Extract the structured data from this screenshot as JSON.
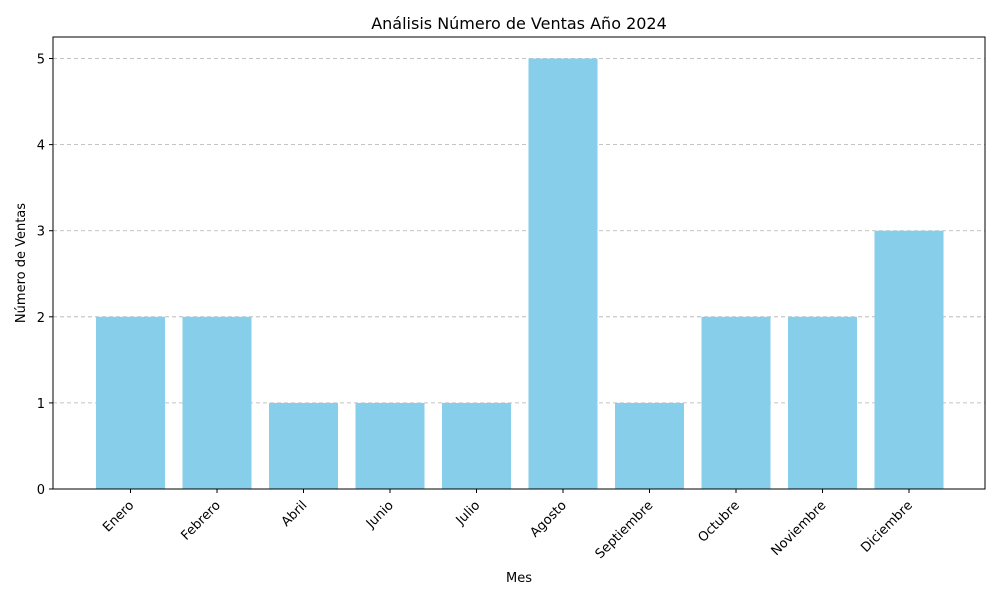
{
  "chart_data": {
    "type": "bar",
    "title": "Análisis Número de Ventas Año 2024",
    "xlabel": "Mes",
    "ylabel": "Número de Ventas",
    "categories": [
      "Enero",
      "Febrero",
      "Abril",
      "Junio",
      "Julio",
      "Agosto",
      "Septiembre",
      "Octubre",
      "Noviembre",
      "Diciembre"
    ],
    "values": [
      2,
      2,
      1,
      1,
      1,
      5,
      1,
      2,
      2,
      3
    ],
    "ylim": [
      0,
      5.25
    ],
    "yticks": [
      0,
      1,
      2,
      3,
      4,
      5
    ],
    "grid": "y",
    "bar_color": "#87ceeb"
  }
}
